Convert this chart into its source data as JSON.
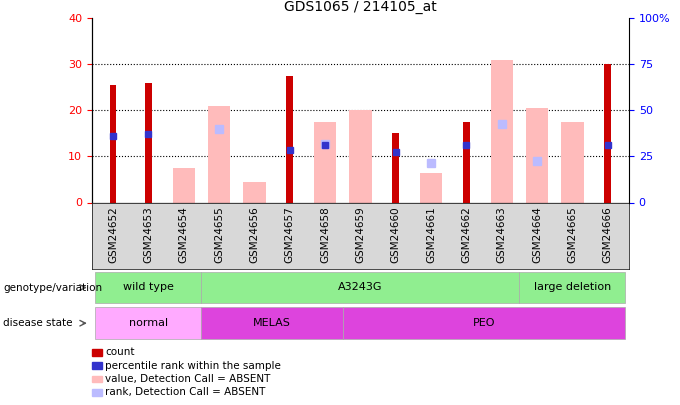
{
  "title": "GDS1065 / 214105_at",
  "samples": [
    "GSM24652",
    "GSM24653",
    "GSM24654",
    "GSM24655",
    "GSM24656",
    "GSM24657",
    "GSM24658",
    "GSM24659",
    "GSM24660",
    "GSM24661",
    "GSM24662",
    "GSM24663",
    "GSM24664",
    "GSM24665",
    "GSM24666"
  ],
  "count_values": [
    25.5,
    26.0,
    null,
    null,
    null,
    27.5,
    null,
    null,
    15.0,
    null,
    17.5,
    null,
    null,
    null,
    30.0
  ],
  "rank_values": [
    14.5,
    14.8,
    null,
    null,
    null,
    11.5,
    12.5,
    null,
    11.0,
    null,
    12.5,
    null,
    null,
    null,
    12.5
  ],
  "absent_value": [
    null,
    null,
    7.5,
    21.0,
    4.5,
    null,
    17.5,
    20.0,
    null,
    6.5,
    null,
    31.0,
    20.5,
    17.5,
    null
  ],
  "absent_rank": [
    null,
    null,
    null,
    16.0,
    null,
    null,
    12.8,
    null,
    null,
    8.5,
    null,
    17.0,
    9.0,
    null,
    null
  ],
  "ylim": [
    0,
    40
  ],
  "y2lim": [
    0,
    100
  ],
  "yticks": [
    0,
    10,
    20,
    30,
    40
  ],
  "y2ticks": [
    0,
    25,
    50,
    75,
    100
  ],
  "count_color": "#cc0000",
  "rank_color": "#3333cc",
  "absent_value_color": "#ffbbbb",
  "absent_rank_color": "#bbbbff",
  "geno_spans": [
    [
      0,
      2,
      "wild type"
    ],
    [
      3,
      11,
      "A3243G"
    ],
    [
      12,
      14,
      "large deletion"
    ]
  ],
  "geno_color": "#90ee90",
  "disease_spans": [
    [
      0,
      2,
      "normal",
      "#ffaaff"
    ],
    [
      3,
      6,
      "MELAS",
      "#dd44dd"
    ],
    [
      7,
      14,
      "PEO",
      "#dd44dd"
    ]
  ],
  "legend_items": [
    {
      "label": "count",
      "color": "#cc0000"
    },
    {
      "label": "percentile rank within the sample",
      "color": "#3333cc"
    },
    {
      "label": "value, Detection Call = ABSENT",
      "color": "#ffbbbb"
    },
    {
      "label": "rank, Detection Call = ABSENT",
      "color": "#bbbbff"
    }
  ],
  "bar_width": 0.35
}
